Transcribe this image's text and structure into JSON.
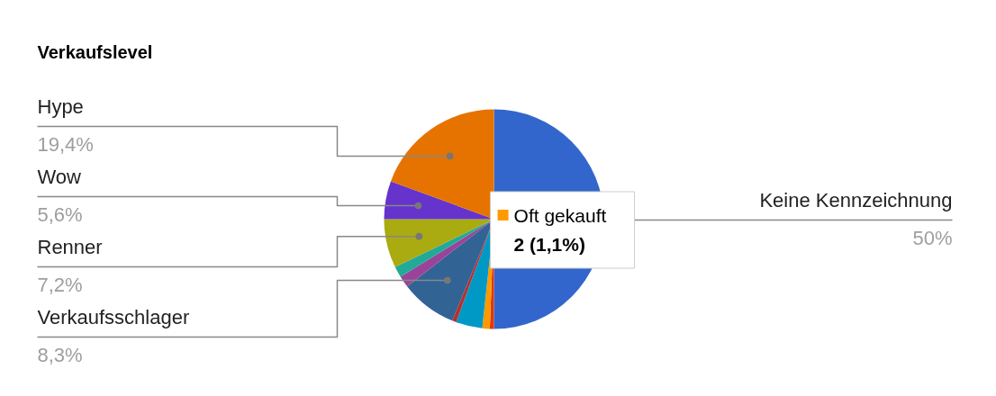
{
  "chart_data": {
    "type": "pie",
    "title": "Verkaufslevel",
    "categories": [
      "Keine Kennzeichnung",
      null,
      "Oft gekauft",
      null,
      null,
      "Verkaufsschlager",
      null,
      null,
      "Renner",
      "Wow",
      "Hype"
    ],
    "values": [
      50,
      0.6,
      1.1,
      3.9,
      0.6,
      8.3,
      1.7,
      1.6,
      7.2,
      5.6,
      19.4
    ],
    "colors": [
      "#3366cc",
      "#dc3912",
      "#ff9900",
      "#0099c6",
      "#b82e2e",
      "#316395",
      "#994499",
      "#22aa99",
      "#aaaa11",
      "#6633cc",
      "#e67300"
    ],
    "value_labels": [
      "50%",
      null,
      null,
      null,
      null,
      "8,3%",
      null,
      null,
      "7,2%",
      "5,6%",
      "19,4%"
    ],
    "annotations": [
      {
        "text": "2 (1,1%)",
        "x": "Oft gekauft"
      }
    ]
  }
}
